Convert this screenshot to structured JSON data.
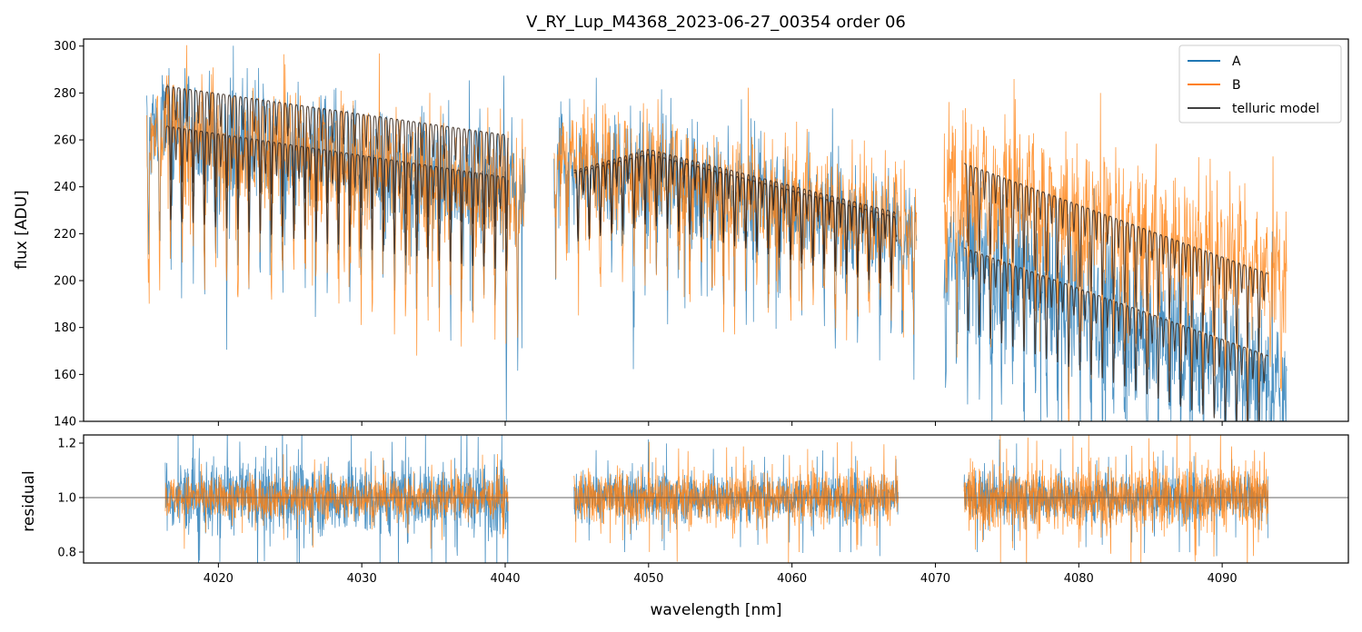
{
  "chart_data": {
    "type": "line",
    "title": "V_RY_Lup_M4368_2023-06-27_00354  order 06",
    "xlabel": "wavelength [nm]",
    "legend_position": "top-right",
    "legend": [
      {
        "label": "A",
        "color": "#1f77b4"
      },
      {
        "label": "B",
        "color": "#ff7f0e"
      },
      {
        "label": "telluric model",
        "color": "#404040"
      }
    ],
    "xlim": [
      4010.6,
      4098.8
    ],
    "xticks": [
      4020,
      4030,
      4040,
      4050,
      4060,
      4070,
      4080,
      4090
    ],
    "panels": [
      {
        "name": "flux",
        "ylabel": "flux [ADU]",
        "ylim": [
          140,
          303
        ],
        "yticks": [
          140,
          160,
          180,
          200,
          220,
          240,
          260,
          280,
          300
        ],
        "segments": [
          {
            "x_start": 4015.0,
            "x_end": 4041.4,
            "A_level": [
              267,
              238
            ],
            "B_level": [
              267,
              238
            ],
            "noise": 22,
            "model_A": [
              [
                4016.3,
                283
              ],
              [
                4040.2,
                262
              ]
            ],
            "model_B": [
              [
                4016.3,
                266
              ],
              [
                4040.2,
                244
              ]
            ],
            "dip_depth": 40
          },
          {
            "x_start": 4043.4,
            "x_end": 4068.7,
            "A_level": [
              253,
              222
            ],
            "B_level": [
              255,
              225
            ],
            "noise": 20,
            "model_A": [
              [
                4044.8,
                247
              ],
              [
                4050,
                256
              ],
              [
                4067.3,
                229
              ]
            ],
            "model_B": [
              [
                4044.8,
                246
              ],
              [
                4050,
                254
              ],
              [
                4067.3,
                227
              ]
            ],
            "dip_depth": 30
          },
          {
            "x_start": 4070.6,
            "x_end": 4094.5,
            "A_level": [
              213,
              158
            ],
            "B_level": [
              245,
              205
            ],
            "noise": 25,
            "model_A": [
              [
                4072.0,
                214
              ],
              [
                4093.2,
                168
              ]
            ],
            "model_B": [
              [
                4072.0,
                250
              ],
              [
                4093.2,
                203
              ]
            ],
            "dip_depth": 35
          }
        ]
      },
      {
        "name": "residual",
        "ylabel": "residual",
        "ylim": [
          0.76,
          1.23
        ],
        "yticks": [
          0.8,
          1.0,
          1.2
        ],
        "reference_line": 1.0,
        "segments": [
          {
            "x_start": 4016.3,
            "x_end": 4040.2,
            "A_noise": 0.12,
            "B_noise": 0.07
          },
          {
            "x_start": 4044.8,
            "x_end": 4067.4,
            "A_noise": 0.08,
            "B_noise": 0.09
          },
          {
            "x_start": 4072.0,
            "x_end": 4093.2,
            "A_noise": 0.08,
            "B_noise": 0.11
          }
        ]
      }
    ]
  }
}
